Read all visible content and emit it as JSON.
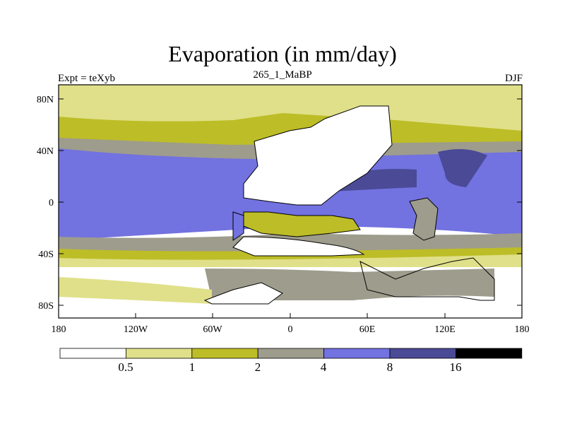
{
  "title": "Evaporation (in mm/day)",
  "subtitle_left": "Expt = teXyb",
  "subtitle_center": "265_1_MaBP",
  "subtitle_right": "DJF",
  "axes": {
    "x_ticks": [
      "180",
      "120W",
      "60W",
      "0",
      "60E",
      "120E",
      "180"
    ],
    "y_ticks": [
      "80N",
      "40N",
      "0",
      "40S",
      "80S"
    ]
  },
  "colorbar": {
    "labels": [
      "0.5",
      "1",
      "2",
      "4",
      "8",
      "16"
    ],
    "colors": [
      "#ffffff",
      "#e0e08a",
      "#bdbd27",
      "#9e9c8c",
      "#7272e0",
      "#4a4a96",
      "#000000"
    ]
  },
  "legend_levels": [
    "<0.5",
    "0.5-1",
    "1-2",
    "2-4",
    "4-8",
    "8-16",
    ">16"
  ]
}
